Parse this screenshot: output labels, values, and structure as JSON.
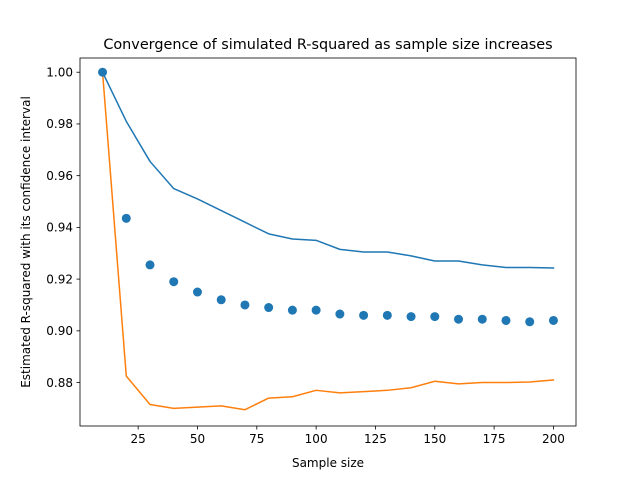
{
  "chart_data": {
    "type": "scatter",
    "title": "Convergence of simulated R-squared as sample size increases",
    "xlabel": "Sample size",
    "ylabel": "Estimated R-squared with its confidence interval",
    "xlim": [
      0.5,
      209.5
    ],
    "ylim": [
      0.8632,
      1.0055
    ],
    "xticks": [
      25,
      50,
      75,
      100,
      125,
      150,
      175,
      200
    ],
    "xtick_labels": [
      "25",
      "50",
      "75",
      "100",
      "125",
      "150",
      "175",
      "200"
    ],
    "yticks": [
      0.88,
      0.9,
      0.92,
      0.94,
      0.96,
      0.98,
      1.0
    ],
    "ytick_labels": [
      "0.88",
      "0.90",
      "0.92",
      "0.94",
      "0.96",
      "0.98",
      "1.00"
    ],
    "grid": false,
    "legend": "none",
    "x": [
      10,
      20,
      30,
      40,
      50,
      60,
      70,
      80,
      90,
      100,
      110,
      120,
      130,
      140,
      150,
      160,
      170,
      180,
      190,
      200
    ],
    "series": [
      {
        "kind": "scatter",
        "color": "#1f77b4",
        "values": [
          1.0,
          0.9435,
          0.9255,
          0.919,
          0.915,
          0.912,
          0.91,
          0.909,
          0.908,
          0.908,
          0.9065,
          0.906,
          0.906,
          0.9055,
          0.9055,
          0.9045,
          0.9045,
          0.904,
          0.9035,
          0.904
        ]
      },
      {
        "kind": "line",
        "color": "#1f77b4",
        "values": [
          1.0,
          0.981,
          0.9655,
          0.955,
          0.951,
          0.9465,
          0.942,
          0.9375,
          0.9355,
          0.935,
          0.9315,
          0.9305,
          0.9305,
          0.929,
          0.927,
          0.927,
          0.9255,
          0.9245,
          0.9245,
          0.9243
        ]
      },
      {
        "kind": "line",
        "color": "#ff7f0e",
        "values": [
          1.0,
          0.8825,
          0.8715,
          0.87,
          0.8705,
          0.871,
          0.8695,
          0.874,
          0.8745,
          0.877,
          0.876,
          0.8765,
          0.877,
          0.878,
          0.8805,
          0.8795,
          0.88,
          0.88,
          0.8802,
          0.881
        ]
      }
    ]
  }
}
